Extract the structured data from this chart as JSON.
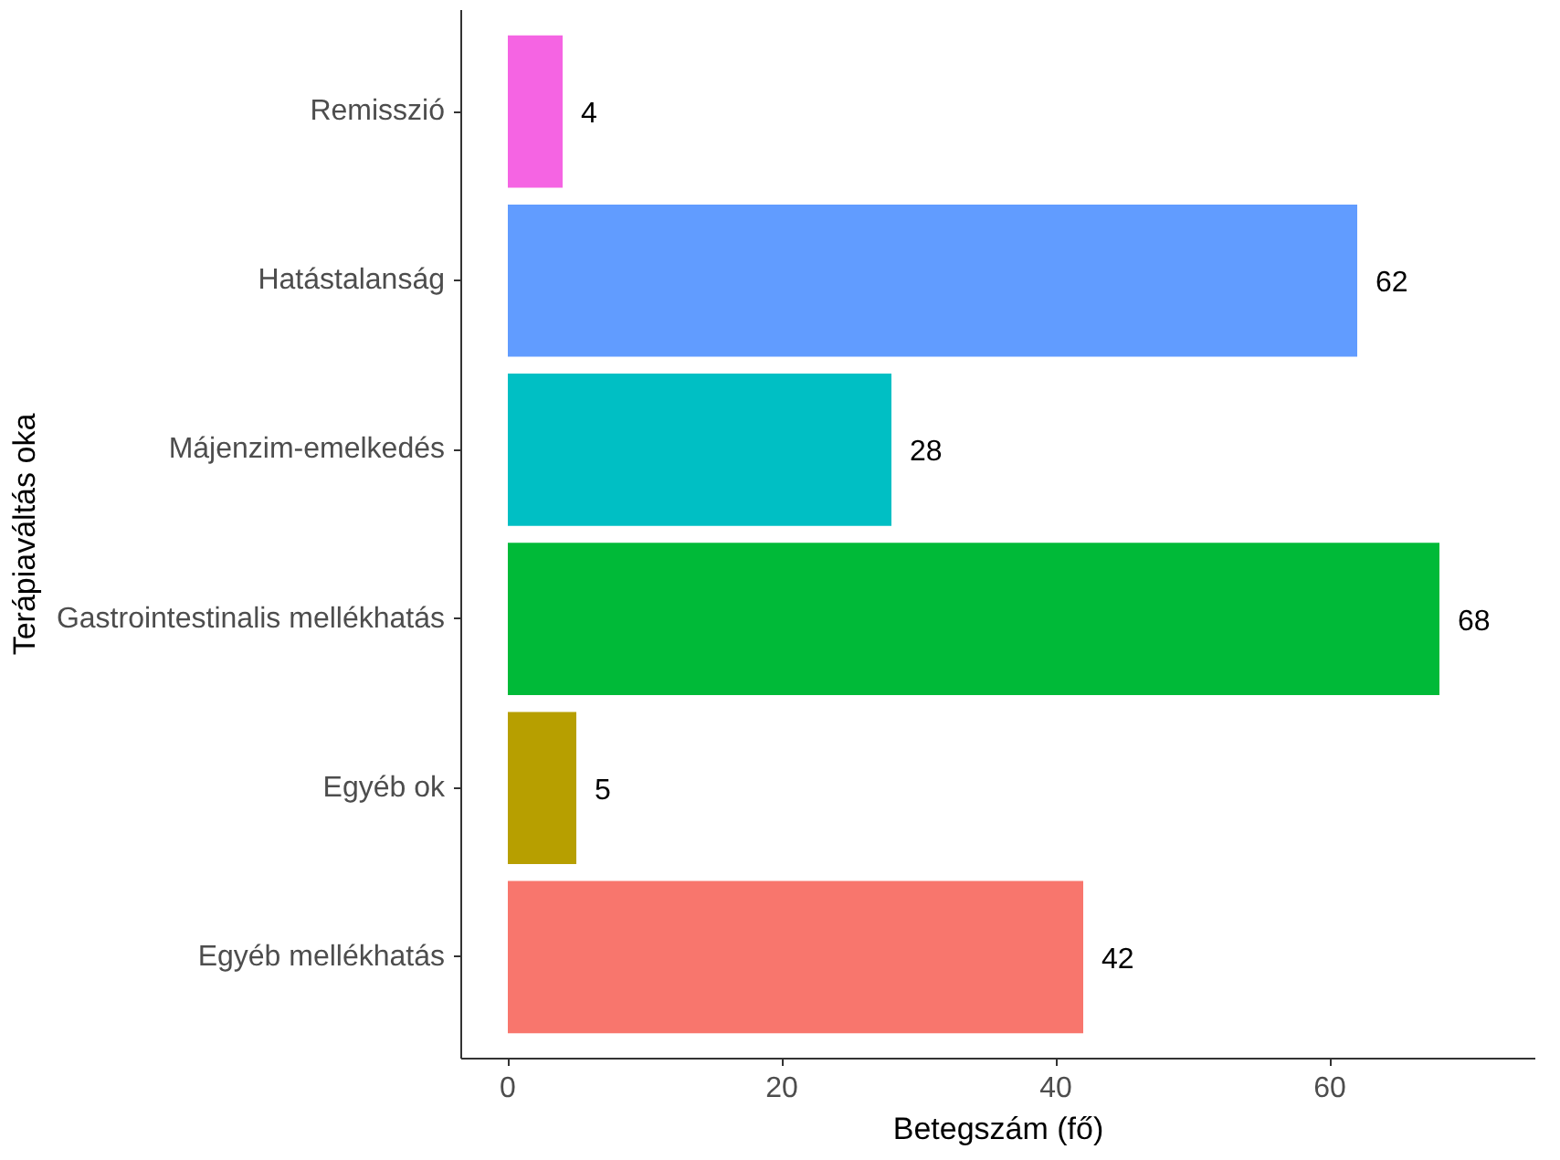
{
  "chart_data": {
    "type": "bar",
    "orientation": "horizontal",
    "xlabel": "Betegszám (fő)",
    "ylabel": "Terápiaváltás oka",
    "categories": [
      "Remisszió",
      "Hatástalanság",
      "Májenzim-emelkedés",
      "Gastrointestinalis mellékhatás",
      "Egyéb ok",
      "Egyéb mellékhatás"
    ],
    "values": [
      4,
      62,
      28,
      68,
      5,
      42
    ],
    "colors": [
      "#f564e3",
      "#619cff",
      "#00bfc4",
      "#00ba38",
      "#b79f00",
      "#f8766d"
    ],
    "xlim": [
      -3.4,
      75
    ],
    "xticks": [
      0,
      20,
      40,
      60
    ],
    "data_labels": true,
    "grid": false
  }
}
